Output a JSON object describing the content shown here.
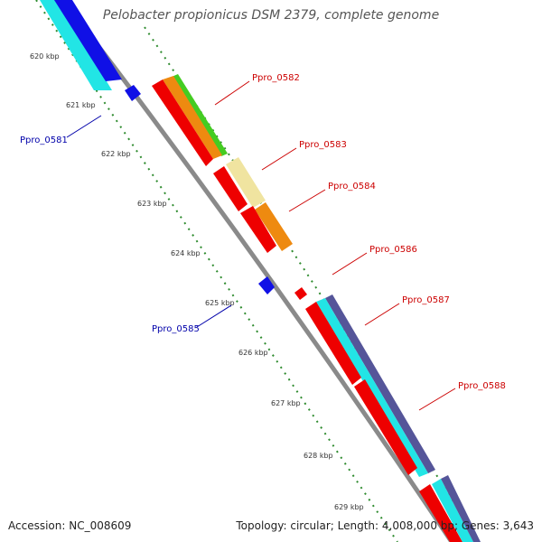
{
  "title": "Pelobacter propionicus DSM 2379, complete genome",
  "footer": {
    "accession": "Accession: NC_008609",
    "summary": "Topology: circular; Length: 4,008,000 bp; Genes: 3,643"
  },
  "colors": {
    "backbone": "#8a8a8a",
    "forward_label": "#cc0000",
    "reverse_label": "#0000aa",
    "tick": "#2e8b2e"
  },
  "kbp_labels": [
    "620 kbp",
    "621 kbp",
    "622 kbp",
    "623 kbp",
    "624 kbp",
    "625 kbp",
    "626 kbp",
    "627 kbp",
    "628 kbp",
    "629 kbp"
  ],
  "gene_labels": {
    "ppro_0581": "Ppro_0581",
    "ppro_0582": "Ppro_0582",
    "ppro_0583": "Ppro_0583",
    "ppro_0584": "Ppro_0584",
    "ppro_0585": "Ppro_0585",
    "ppro_0586": "Ppro_0586",
    "ppro_0587": "Ppro_0587",
    "ppro_0588": "Ppro_0588"
  }
}
